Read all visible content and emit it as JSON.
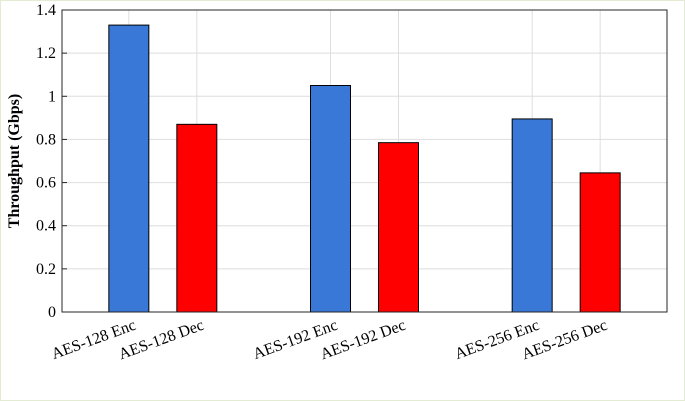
{
  "chart_data": {
    "type": "bar",
    "title": "",
    "xlabel": "",
    "ylabel": "Throughput (Gbps)",
    "ylim": [
      0,
      1.4
    ],
    "yticks": [
      0,
      0.2,
      0.4,
      0.6,
      0.8,
      1,
      1.2,
      1.4
    ],
    "ytick_labels": [
      "0",
      "0.2",
      "0.4",
      "0.6",
      "0.8",
      "1",
      "1.2",
      "1.4"
    ],
    "grid": true,
    "legend": "none",
    "categories": [
      "AES-128 Enc",
      "AES-128 Dec",
      "AES-192 Enc",
      "AES-192 Dec",
      "AES-256 Enc",
      "AES-256 Dec"
    ],
    "values": [
      1.33,
      0.87,
      1.05,
      0.785,
      0.895,
      0.645
    ],
    "colors": [
      "#3a78d8",
      "#ff0000",
      "#3a78d8",
      "#ff0000",
      "#3a78d8",
      "#ff0000"
    ]
  }
}
